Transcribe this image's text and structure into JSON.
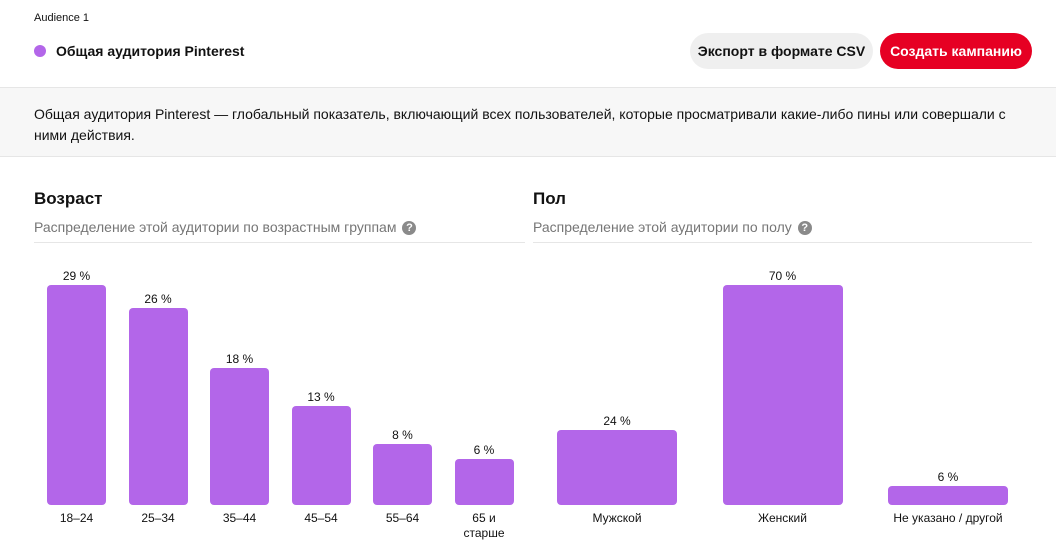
{
  "header": {
    "audience_label": "Audience 1",
    "audience_name": "Общая аудитория Pinterest",
    "export_button": "Экспорт в формате CSV",
    "create_button": "Создать кампанию"
  },
  "description": "Общая аудитория Pinterest — глобальный показатель, включающий всех пользователей, которые просматривали какие-либо пины или совершали с ними действия.",
  "chart_data": [
    {
      "type": "bar",
      "title": "Возраст",
      "subtitle": "Распределение этой аудитории по возрастным группам",
      "categories": [
        "18–24",
        "25–34",
        "35–44",
        "45–54",
        "55–64",
        "65 и старше"
      ],
      "values": [
        29,
        26,
        18,
        13,
        8,
        6
      ],
      "value_labels": [
        "29 %",
        "26 %",
        "18 %",
        "13 %",
        "8 %",
        "6 %"
      ],
      "color": "#b366e9"
    },
    {
      "type": "bar",
      "title": "Пол",
      "subtitle": "Распределение этой аудитории по полу",
      "categories": [
        "Мужской",
        "Женский",
        "Не указано / другой"
      ],
      "values": [
        24,
        70,
        6
      ],
      "value_labels": [
        "24 %",
        "70 %",
        "6 %"
      ],
      "color": "#b366e9"
    }
  ]
}
